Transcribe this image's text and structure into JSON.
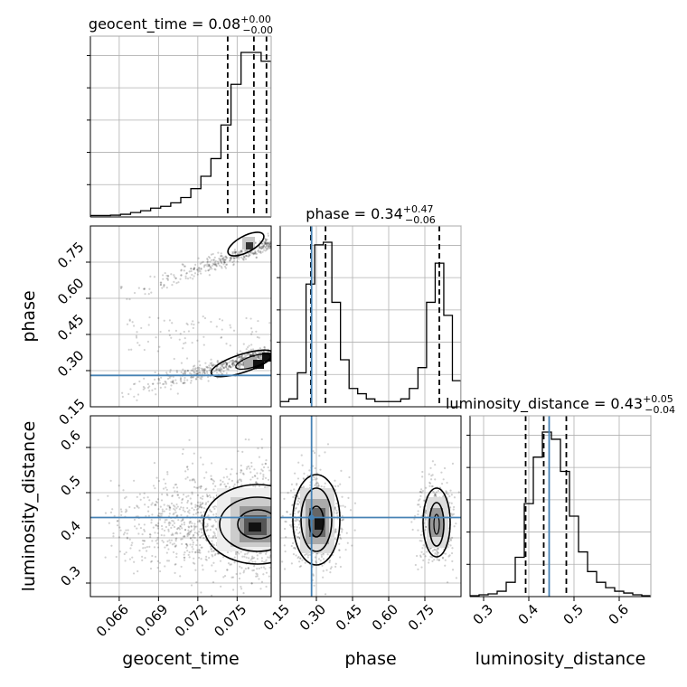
{
  "chart_data": {
    "type": "corner",
    "parameters": [
      {
        "name": "geocent_time",
        "axis_label": "geocent_time",
        "title": {
          "prefix": "geocent_time = ",
          "median": "0.08",
          "plus": "+0.00",
          "minus": "−0.00"
        },
        "range": [
          0.0638,
          0.0776
        ],
        "ticks": [
          0.066,
          0.069,
          0.072,
          0.075
        ],
        "tick_labels": [
          "0.066",
          "0.069",
          "0.072",
          "0.075"
        ],
        "quantiles": [
          0.07428,
          0.07628,
          0.07724
        ],
        "truth": null,
        "hist": [
          0.8,
          0.8,
          1,
          1.5,
          2.5,
          3.5,
          5,
          6,
          8,
          11,
          16,
          23,
          33,
          52,
          75,
          93,
          93,
          88
        ]
      },
      {
        "name": "phase",
        "axis_label": "phase",
        "title": {
          "prefix": "phase = ",
          "median": "0.34",
          "plus": "+0.47",
          "minus": "−0.06"
        },
        "range": [
          0.15,
          0.9
        ],
        "ticks": [
          0.15,
          0.3,
          0.45,
          0.6,
          0.75
        ],
        "tick_labels": [
          "0.15",
          "0.30",
          "0.45",
          "0.60",
          "0.75"
        ],
        "quantiles": [
          0.277,
          0.338,
          0.81
        ],
        "truth": 0.28,
        "hist": [
          2,
          3,
          13,
          47,
          62,
          63,
          40,
          18,
          7,
          5,
          3,
          2,
          2,
          2,
          3,
          7,
          15,
          40,
          55,
          35,
          10
        ]
      },
      {
        "name": "luminosity_distance",
        "axis_label": "luminosity_distance",
        "title": {
          "prefix": "luminosity_distance = ",
          "median": "0.43",
          "plus": "+0.05",
          "minus": "−0.04"
        },
        "range": [
          0.27,
          0.67
        ],
        "ticks": [
          0.3,
          0.4,
          0.5,
          0.6
        ],
        "tick_labels": [
          "0.3",
          "0.4",
          "0.5",
          "0.6"
        ],
        "quantiles": [
          0.393,
          0.433,
          0.483
        ],
        "truth": 0.445,
        "hist": [
          0.5,
          1,
          1.5,
          3,
          8,
          22,
          52,
          78,
          92,
          88,
          70,
          45,
          25,
          14,
          8,
          5,
          3,
          2,
          1,
          0.5
        ]
      }
    ],
    "left_tick_labels_row2": [
      "0.30",
      "0.45",
      "0.60",
      "0.75"
    ],
    "left_tick_labels_row3": [
      "0.3",
      "0.4",
      "0.5",
      "0.6"
    ],
    "corner_extra_tick_label": "0.15",
    "truth_color": "#4682b4",
    "grid": true
  }
}
